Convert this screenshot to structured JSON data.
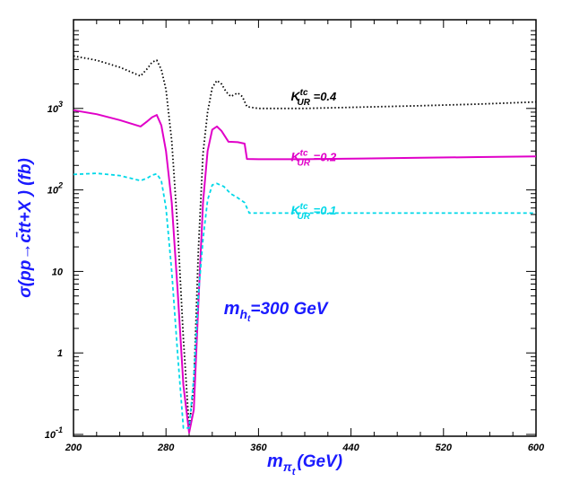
{
  "chart_data": {
    "type": "line",
    "xlabel": "m",
    "xlabel_sub": "π",
    "xlabel_subsub": "t",
    "xlabel_unit": "(GeV)",
    "ylabel": "σ(pp→c̄tt+X ) (fb)",
    "x_scale": "linear",
    "y_scale": "log",
    "xlim": [
      200,
      600
    ],
    "ylim": [
      0.1,
      10000
    ],
    "x_ticks": [
      200,
      280,
      360,
      440,
      520,
      600
    ],
    "x_tick_labels": [
      "200",
      "280",
      "360",
      "440",
      "520",
      "600"
    ],
    "y_ticks": [
      {
        "value": 0.1,
        "base": "10",
        "exp": "-1"
      },
      {
        "value": 1,
        "base": "1",
        "exp": ""
      },
      {
        "value": 10,
        "base": "10",
        "exp": ""
      },
      {
        "value": 100,
        "base": "10",
        "exp": "2"
      },
      {
        "value": 1000,
        "base": "10",
        "exp": "3"
      }
    ],
    "annotation": {
      "main": "m",
      "sub": "h",
      "subsub": "t",
      "rest": "=300 GeV",
      "x": 330,
      "y": 3
    },
    "series": [
      {
        "name": "K^tc_UR =0.4",
        "label_main": "K",
        "label_sup": "tc",
        "label_sub": "UR",
        "label_rest": " =0.4",
        "label_at": [
          388,
          1250
        ],
        "color": "#000000",
        "dash": "1.5,2.5",
        "points": [
          [
            200,
            4400
          ],
          [
            220,
            3900
          ],
          [
            240,
            3200
          ],
          [
            258,
            2500
          ],
          [
            264,
            3100
          ],
          [
            268,
            3700
          ],
          [
            272,
            3900
          ],
          [
            276,
            3000
          ],
          [
            280,
            1700
          ],
          [
            285,
            400
          ],
          [
            290,
            35
          ],
          [
            295,
            1.5
          ],
          [
            300,
            0.12
          ],
          [
            304,
            0.4
          ],
          [
            308,
            18
          ],
          [
            312,
            280
          ],
          [
            316,
            900
          ],
          [
            320,
            1800
          ],
          [
            324,
            2200
          ],
          [
            328,
            2000
          ],
          [
            332,
            1600
          ],
          [
            336,
            1400
          ],
          [
            342,
            1550
          ],
          [
            346,
            1400
          ],
          [
            350,
            1050
          ],
          [
            360,
            1000
          ],
          [
            400,
            1000
          ],
          [
            450,
            1040
          ],
          [
            500,
            1080
          ],
          [
            550,
            1130
          ],
          [
            600,
            1200
          ]
        ]
      },
      {
        "name": "K^tc_UR =0.2",
        "label_main": "K",
        "label_sup": "tc",
        "label_sub": "UR",
        "label_rest": " =0.2",
        "label_at": [
          388,
          225
        ],
        "color": "#e000c8",
        "dash": "",
        "points": [
          [
            200,
            950
          ],
          [
            220,
            850
          ],
          [
            240,
            720
          ],
          [
            258,
            600
          ],
          [
            264,
            700
          ],
          [
            268,
            780
          ],
          [
            272,
            830
          ],
          [
            276,
            620
          ],
          [
            280,
            300
          ],
          [
            285,
            70
          ],
          [
            290,
            6
          ],
          [
            295,
            0.4
          ],
          [
            300,
            0.105
          ],
          [
            304,
            0.2
          ],
          [
            308,
            4
          ],
          [
            312,
            70
          ],
          [
            316,
            300
          ],
          [
            320,
            550
          ],
          [
            324,
            600
          ],
          [
            328,
            530
          ],
          [
            334,
            390
          ],
          [
            342,
            385
          ],
          [
            348,
            370
          ],
          [
            350,
            240
          ],
          [
            360,
            238
          ],
          [
            400,
            238
          ],
          [
            450,
            243
          ],
          [
            500,
            248
          ],
          [
            550,
            253
          ],
          [
            600,
            258
          ]
        ]
      },
      {
        "name": "K^tc_UR =0.1",
        "label_main": "K",
        "label_sup": "tc",
        "label_sub": "UR",
        "label_rest": " =0.1",
        "label_at": [
          388,
          50
        ],
        "color": "#00d8e8",
        "dash": "4,3",
        "points": [
          [
            200,
            155
          ],
          [
            220,
            160
          ],
          [
            240,
            150
          ],
          [
            258,
            130
          ],
          [
            264,
            140
          ],
          [
            268,
            152
          ],
          [
            272,
            158
          ],
          [
            276,
            130
          ],
          [
            280,
            60
          ],
          [
            285,
            10
          ],
          [
            290,
            1
          ],
          [
            295,
            0.12
          ],
          [
            300,
            0.12
          ],
          [
            304,
            0.5
          ],
          [
            308,
            5
          ],
          [
            312,
            25
          ],
          [
            316,
            75
          ],
          [
            320,
            115
          ],
          [
            324,
            120
          ],
          [
            330,
            110
          ],
          [
            336,
            90
          ],
          [
            342,
            80
          ],
          [
            348,
            70
          ],
          [
            352,
            52
          ],
          [
            360,
            52
          ],
          [
            400,
            52
          ],
          [
            450,
            52
          ],
          [
            500,
            52
          ],
          [
            550,
            52
          ],
          [
            600,
            52
          ]
        ]
      }
    ]
  }
}
